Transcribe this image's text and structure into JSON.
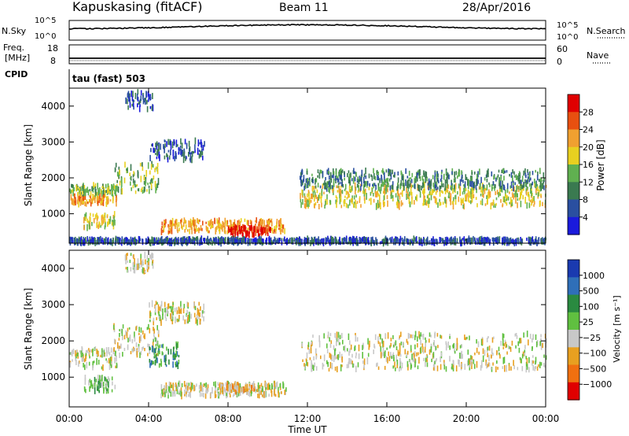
{
  "header": {
    "station": "Kapuskasing (fitACF)",
    "beam": "Beam 11",
    "date": "28/Apr/2016"
  },
  "left_labels": {
    "nsky": "N.Sky",
    "freq_line1": "Freq.",
    "freq_line2": "[MHz]",
    "cpid": "CPID"
  },
  "right_labels": {
    "nsearch": "N.Search",
    "nave": "Nave"
  },
  "mode_label": "tau (fast) 503",
  "top_axes": {
    "noise_left_ticks": [
      "10^5",
      "10^0"
    ],
    "noise_right_ticks": [
      "10^5",
      "10^0"
    ],
    "freq_left_ticks": [
      "18",
      "8"
    ],
    "freq_right_ticks": [
      "60",
      "0"
    ]
  },
  "colors": {
    "power_scale": [
      "#1a1adc",
      "#2a4fa0",
      "#3a7a50",
      "#60b050",
      "#e8d020",
      "#f0a030",
      "#e85010",
      "#e00000"
    ],
    "velocity_scale": [
      "#1a3ab0",
      "#2f6fb8",
      "#2a8a40",
      "#60c040",
      "#c8c8c8",
      "#e8a020",
      "#f07010",
      "#e00000"
    ]
  },
  "chart_data": [
    {
      "type": "heatmap",
      "panel": "power",
      "ylabel": "Slant Range [km]",
      "ylim": [
        180,
        4500
      ],
      "yticks": [
        "1000",
        "2000",
        "3000",
        "4000"
      ],
      "colorbar_label": "Power [dB]",
      "colorbar_ticks": [
        "4",
        "8",
        "12",
        "16",
        "20",
        "24",
        "28"
      ],
      "xlim_hours": [
        0,
        24
      ],
      "features": [
        {
          "t0": 0.0,
          "t1": 2.4,
          "r0": 1250,
          "r1": 1500,
          "level": 5
        },
        {
          "t0": 0.0,
          "t1": 2.4,
          "r0": 1550,
          "r1": 1800,
          "level": 3
        },
        {
          "t0": 0.7,
          "t1": 2.3,
          "r0": 600,
          "r1": 1000,
          "level": 4
        },
        {
          "t0": 2.2,
          "t1": 4.5,
          "r0": 1600,
          "r1": 2400,
          "level": 3
        },
        {
          "t0": 4.0,
          "t1": 6.8,
          "r0": 2500,
          "r1": 3050,
          "level": 1
        },
        {
          "t0": 2.8,
          "t1": 4.2,
          "r0": 3900,
          "r1": 4400,
          "level": 1
        },
        {
          "t0": 4.6,
          "t1": 10.9,
          "r0": 480,
          "r1": 820,
          "level": 5
        },
        {
          "t0": 8.0,
          "t1": 10.2,
          "r0": 400,
          "r1": 620,
          "level": 7
        },
        {
          "t0": 11.6,
          "t1": 24.0,
          "r0": 1200,
          "r1": 1800,
          "level": 4
        },
        {
          "t0": 11.6,
          "t1": 24.0,
          "r0": 1700,
          "r1": 2200,
          "level": 2
        },
        {
          "t0": 0.0,
          "t1": 24.0,
          "r0": 180,
          "r1": 300,
          "level": 1
        }
      ]
    },
    {
      "type": "heatmap",
      "panel": "velocity",
      "ylabel": "Slant Range [km]",
      "xlabel": "Time UT",
      "ylim": [
        180,
        4500
      ],
      "yticks": [
        "1000",
        "2000",
        "3000",
        "4000"
      ],
      "xticks": [
        "00:00",
        "04:00",
        "08:00",
        "12:00",
        "16:00",
        "20:00",
        "00:00"
      ],
      "colorbar_label": "Velocity [m s⁻¹]",
      "colorbar_ticks": [
        "1000",
        "500",
        "100",
        "25",
        "−25",
        "−100",
        "−500",
        "−1000"
      ],
      "xlim_hours": [
        0,
        24
      ],
      "features": [
        {
          "t0": 0.0,
          "t1": 2.4,
          "r0": 1250,
          "r1": 1800,
          "level": 4
        },
        {
          "t0": 0.7,
          "t1": 2.3,
          "r0": 600,
          "r1": 1000,
          "level": 3
        },
        {
          "t0": 2.2,
          "t1": 4.5,
          "r0": 1600,
          "r1": 2400,
          "level": 4
        },
        {
          "t0": 4.0,
          "t1": 6.8,
          "r0": 2500,
          "r1": 3050,
          "level": 4
        },
        {
          "t0": 2.8,
          "t1": 4.2,
          "r0": 3900,
          "r1": 4400,
          "level": 4
        },
        {
          "t0": 4.0,
          "t1": 5.5,
          "r0": 1300,
          "r1": 1900,
          "level": 2
        },
        {
          "t0": 4.6,
          "t1": 10.9,
          "r0": 480,
          "r1": 820,
          "level": 4
        },
        {
          "t0": 7.5,
          "t1": 9.3,
          "r0": 600,
          "r1": 820,
          "level": 5
        },
        {
          "t0": 11.6,
          "t1": 24.0,
          "r0": 1200,
          "r1": 2200,
          "level": 4
        }
      ]
    }
  ]
}
